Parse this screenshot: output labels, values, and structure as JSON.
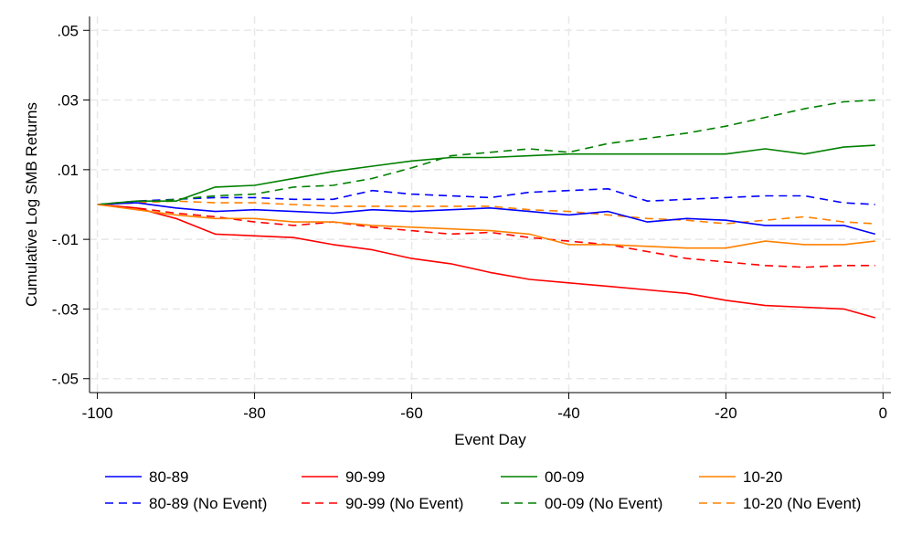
{
  "chart_data": {
    "type": "line",
    "title": "",
    "xlabel": "Event Day",
    "ylabel": "Cumulative Log SMB Returns",
    "xlim": [
      -101,
      1
    ],
    "ylim": [
      -0.054,
      0.054
    ],
    "grid": true,
    "legend_position": "bottom",
    "x_ticks": [
      {
        "value": -100,
        "label": "-100"
      },
      {
        "value": -80,
        "label": "-80"
      },
      {
        "value": -60,
        "label": "-60"
      },
      {
        "value": -40,
        "label": "-40"
      },
      {
        "value": -20,
        "label": "-20"
      },
      {
        "value": 0,
        "label": "0"
      }
    ],
    "y_ticks": [
      {
        "value": 0.05,
        "label": ".05"
      },
      {
        "value": 0.03,
        "label": ".03"
      },
      {
        "value": 0.01,
        "label": ".01"
      },
      {
        "value": -0.01,
        "label": "-.01"
      },
      {
        "value": -0.03,
        "label": "-.03"
      },
      {
        "value": -0.05,
        "label": "-.05"
      }
    ],
    "series": [
      {
        "name": "80-89",
        "color": "#0000ff",
        "dash": false,
        "x": [
          -100,
          -95,
          -90,
          -85,
          -80,
          -75,
          -70,
          -65,
          -60,
          -55,
          -50,
          -45,
          -40,
          -35,
          -30,
          -25,
          -20,
          -15,
          -10,
          -5,
          -1
        ],
        "y": [
          0.0,
          0.0005,
          -0.001,
          -0.002,
          -0.0015,
          -0.002,
          -0.0025,
          -0.0015,
          -0.002,
          -0.0015,
          -0.001,
          -0.002,
          -0.003,
          -0.002,
          -0.005,
          -0.004,
          -0.0045,
          -0.006,
          -0.006,
          -0.006,
          -0.0085
        ]
      },
      {
        "name": "90-99",
        "color": "#ff0000",
        "dash": false,
        "x": [
          -100,
          -95,
          -90,
          -85,
          -80,
          -75,
          -70,
          -65,
          -60,
          -55,
          -50,
          -45,
          -40,
          -35,
          -30,
          -25,
          -20,
          -15,
          -10,
          -5,
          -1
        ],
        "y": [
          0.0,
          -0.001,
          -0.004,
          -0.0085,
          -0.009,
          -0.0095,
          -0.0115,
          -0.013,
          -0.0155,
          -0.017,
          -0.0195,
          -0.0215,
          -0.0225,
          -0.0235,
          -0.0245,
          -0.0255,
          -0.0275,
          -0.029,
          -0.0295,
          -0.03,
          -0.0325
        ]
      },
      {
        "name": "00-09",
        "color": "#008000",
        "dash": false,
        "x": [
          -100,
          -95,
          -90,
          -85,
          -80,
          -75,
          -70,
          -65,
          -60,
          -55,
          -50,
          -45,
          -40,
          -35,
          -30,
          -25,
          -20,
          -15,
          -10,
          -5,
          -1
        ],
        "y": [
          0.0,
          0.001,
          0.001,
          0.005,
          0.0055,
          0.0075,
          0.0095,
          0.011,
          0.0125,
          0.0135,
          0.0135,
          0.014,
          0.0145,
          0.0145,
          0.0145,
          0.0145,
          0.0145,
          0.016,
          0.0145,
          0.0165,
          0.017
        ]
      },
      {
        "name": "10-20",
        "color": "#ff8000",
        "dash": false,
        "x": [
          -100,
          -95,
          -90,
          -85,
          -80,
          -75,
          -70,
          -65,
          -60,
          -55,
          -50,
          -45,
          -40,
          -35,
          -30,
          -25,
          -20,
          -15,
          -10,
          -5,
          -1
        ],
        "y": [
          0.0,
          -0.0015,
          -0.003,
          -0.004,
          -0.004,
          -0.005,
          -0.005,
          -0.006,
          -0.0065,
          -0.007,
          -0.0075,
          -0.0085,
          -0.0115,
          -0.0115,
          -0.012,
          -0.0125,
          -0.0125,
          -0.0105,
          -0.0115,
          -0.0115,
          -0.0105
        ]
      },
      {
        "name": "80-89 (No Event)",
        "color": "#0000ff",
        "dash": true,
        "x": [
          -100,
          -95,
          -90,
          -85,
          -80,
          -75,
          -70,
          -65,
          -60,
          -55,
          -50,
          -45,
          -40,
          -35,
          -30,
          -25,
          -20,
          -15,
          -10,
          -5,
          -1
        ],
        "y": [
          0.0,
          0.001,
          0.0015,
          0.002,
          0.002,
          0.0015,
          0.0015,
          0.004,
          0.003,
          0.0025,
          0.002,
          0.0035,
          0.004,
          0.0045,
          0.001,
          0.0015,
          0.002,
          0.0025,
          0.0025,
          0.0005,
          0.0
        ]
      },
      {
        "name": "90-99 (No Event)",
        "color": "#ff0000",
        "dash": true,
        "x": [
          -100,
          -95,
          -90,
          -85,
          -80,
          -75,
          -70,
          -65,
          -60,
          -55,
          -50,
          -45,
          -40,
          -35,
          -30,
          -25,
          -20,
          -15,
          -10,
          -5,
          -1
        ],
        "y": [
          0.0,
          -0.001,
          -0.0025,
          -0.0035,
          -0.005,
          -0.006,
          -0.005,
          -0.0065,
          -0.0075,
          -0.0085,
          -0.008,
          -0.0095,
          -0.0105,
          -0.0115,
          -0.0135,
          -0.0155,
          -0.0165,
          -0.0175,
          -0.018,
          -0.0175,
          -0.0175
        ]
      },
      {
        "name": "00-09 (No Event)",
        "color": "#008000",
        "dash": true,
        "x": [
          -100,
          -95,
          -90,
          -85,
          -80,
          -75,
          -70,
          -65,
          -60,
          -55,
          -50,
          -45,
          -40,
          -35,
          -30,
          -25,
          -20,
          -15,
          -10,
          -5,
          -1
        ],
        "y": [
          0.0,
          0.0005,
          0.0015,
          0.0025,
          0.003,
          0.005,
          0.0055,
          0.0075,
          0.0105,
          0.014,
          0.015,
          0.016,
          0.015,
          0.0175,
          0.019,
          0.0205,
          0.0225,
          0.025,
          0.0275,
          0.0295,
          0.03
        ]
      },
      {
        "name": "10-20 (No Event)",
        "color": "#ff8000",
        "dash": true,
        "x": [
          -100,
          -95,
          -90,
          -85,
          -80,
          -75,
          -70,
          -65,
          -60,
          -55,
          -50,
          -45,
          -40,
          -35,
          -30,
          -25,
          -20,
          -15,
          -10,
          -5,
          -1
        ],
        "y": [
          0.0,
          0.0005,
          0.001,
          0.0005,
          0.0005,
          0.0,
          -0.0005,
          -0.0005,
          -0.0005,
          -0.0005,
          -0.0005,
          -0.0015,
          -0.002,
          -0.003,
          -0.004,
          -0.0045,
          -0.0055,
          -0.0045,
          -0.0035,
          -0.005,
          -0.0055
        ]
      }
    ]
  }
}
